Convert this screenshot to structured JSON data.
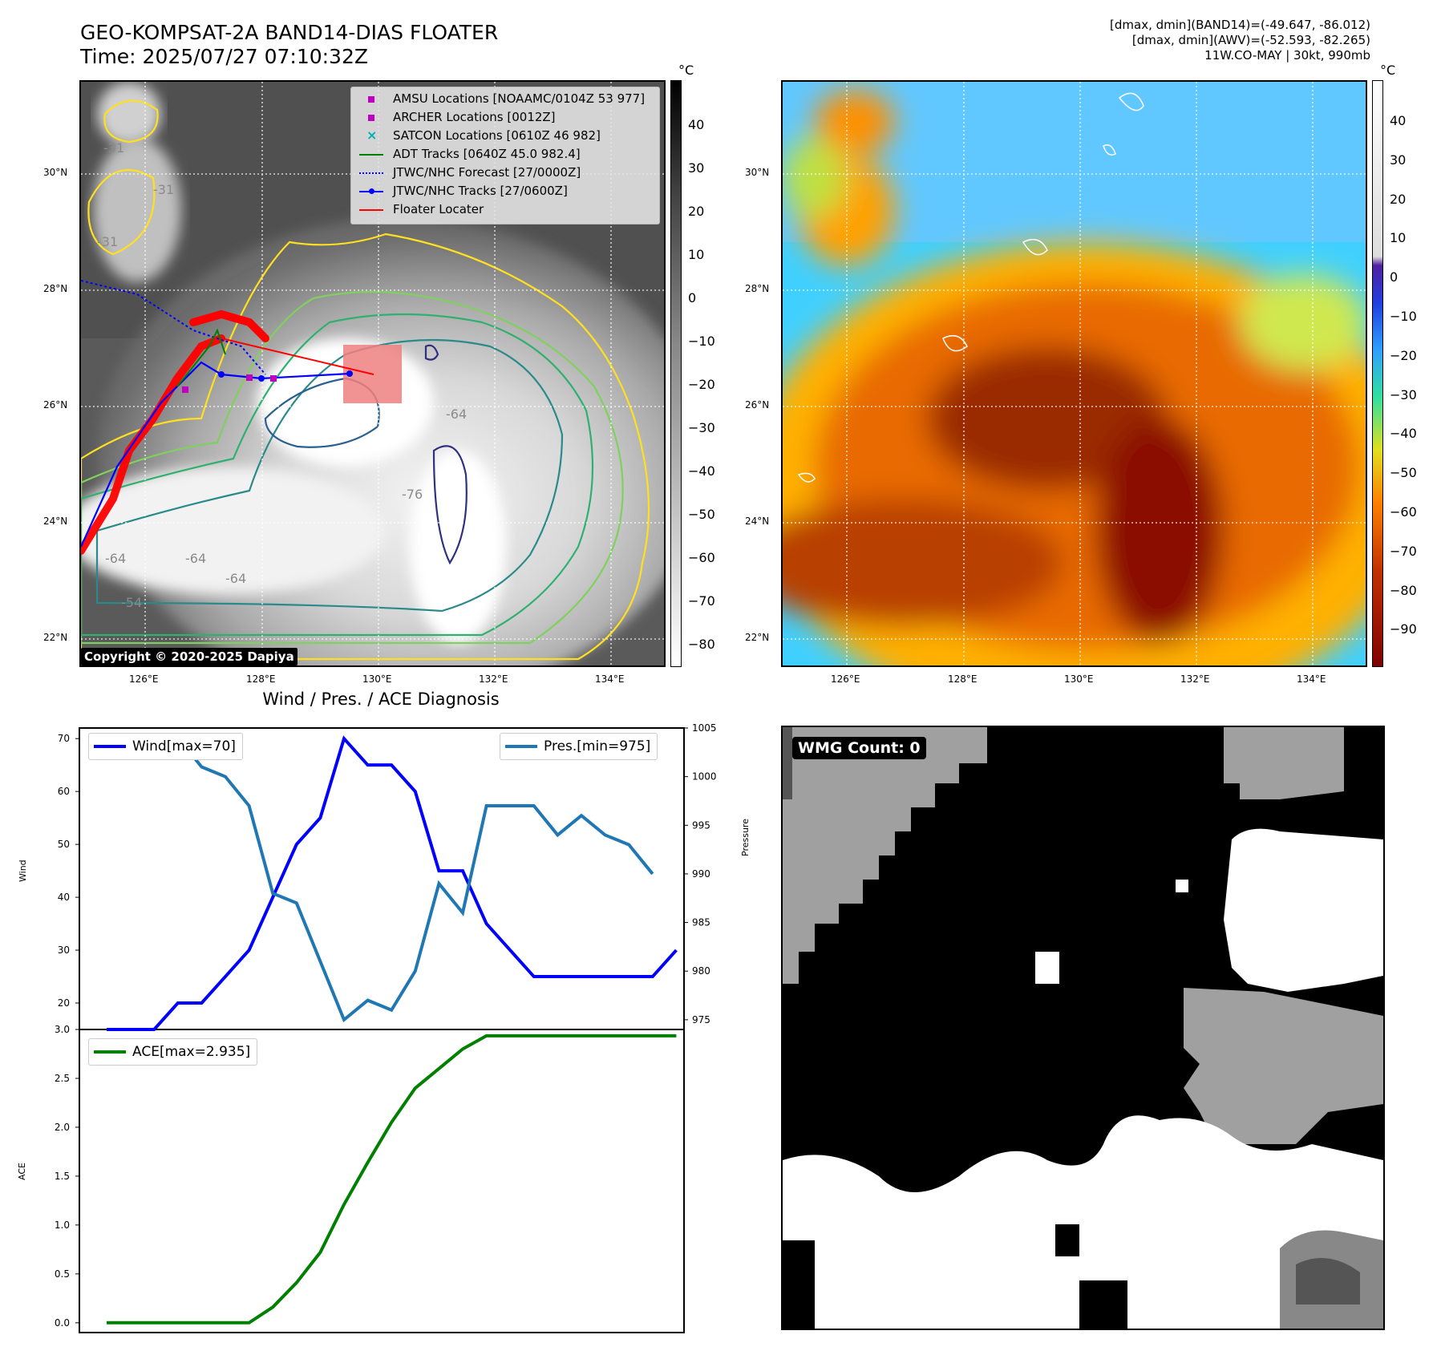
{
  "header": {
    "title_line1": "GEO-KOMPSAT-2A BAND14-DIAS FLOATER",
    "title_line2": "Time: 2025/07/27 07:10:32Z",
    "info_line1": "[dmax, dmin](BAND14)=(-49.647, -86.012)",
    "info_line2": "[dmax, dmin](AWV)=(-52.593, -82.265)",
    "info_line3": "11W.CO-MAY | 30kt, 990mb"
  },
  "map": {
    "lat_labels": [
      "30°N",
      "28°N",
      "26°N",
      "24°N",
      "22°N"
    ],
    "lon_labels": [
      "126°E",
      "128°E",
      "130°E",
      "132°E",
      "134°E"
    ],
    "contour_labels": [
      "-31",
      "-31",
      "-31",
      "-64",
      "-64",
      "-64",
      "-64",
      "-76",
      "-54"
    ],
    "copyright": "Copyright © 2020-2025 Dapiya",
    "legend": [
      {
        "label": "AMSU Locations [NOAAMC/0104Z 53 977]",
        "color": "#c000c0",
        "marker": "square"
      },
      {
        "label": "ARCHER Locations [0012Z]",
        "color": "#c000c0",
        "marker": "square"
      },
      {
        "label": "SATCON Locations [0610Z 46 982]",
        "color": "#00b0b0",
        "marker": "x"
      },
      {
        "label": "ADT Tracks [0640Z 45.0 982.4]",
        "color": "#008000",
        "marker": "line"
      },
      {
        "label": "JTWC/NHC Forecast [27/0000Z]",
        "color": "#0000ff",
        "marker": "dotted"
      },
      {
        "label": "JTWC/NHC Tracks [27/0600Z]",
        "color": "#0000ff",
        "marker": "line-dot"
      },
      {
        "label": "Floater Locater",
        "color": "#ff0000",
        "marker": "line"
      }
    ]
  },
  "colorbar_gray": {
    "unit": "°C",
    "ticks": [
      "40",
      "30",
      "20",
      "10",
      "0",
      "−10",
      "−20",
      "−30",
      "−40",
      "−50",
      "−60",
      "−70",
      "−80"
    ]
  },
  "colorbar_color": {
    "unit": "°C",
    "ticks": [
      "40",
      "30",
      "20",
      "10",
      "0",
      "−10",
      "−20",
      "−30",
      "−40",
      "−50",
      "−60",
      "−70",
      "−80",
      "−90"
    ]
  },
  "wmg": {
    "label": "WMG Count: 0"
  },
  "chart_data": [
    {
      "type": "line",
      "title": "Wind / Pres. / ACE Diagnosis",
      "ylabel": "Wind",
      "ylabel_right": "Pressure",
      "ylim": [
        15,
        72
      ],
      "ylim_right": [
        974,
        1005
      ],
      "yticks": [
        20,
        30,
        40,
        50,
        60,
        70
      ],
      "yticks_right": [
        975,
        980,
        985,
        990,
        995,
        1000,
        1005
      ],
      "series": [
        {
          "name": "Wind[max=70]",
          "color": "#0000ff",
          "axis": "left",
          "values": [
            15,
            15,
            15,
            20,
            20,
            25,
            30,
            40,
            50,
            55,
            70,
            65,
            65,
            60,
            45,
            45,
            35,
            30,
            25,
            25,
            25,
            25,
            25,
            25,
            30
          ]
        },
        {
          "name": "Pres.[min=975]",
          "color": "#1f77b4",
          "axis": "right",
          "values": [
            1004,
            1004,
            1004,
            1004,
            1001,
            1000,
            997,
            988,
            987,
            981,
            975,
            977,
            976,
            980,
            989,
            986,
            997,
            997,
            997,
            994,
            996,
            994,
            993,
            990,
            null
          ]
        }
      ]
    },
    {
      "type": "line",
      "ylabel": "ACE",
      "ylim": [
        -0.1,
        3.0
      ],
      "yticks": [
        0.0,
        0.5,
        1.0,
        1.5,
        2.0,
        2.5,
        3.0
      ],
      "series": [
        {
          "name": "ACE[max=2.935]",
          "color": "#008000",
          "values": [
            0,
            0,
            0,
            0,
            0,
            0,
            0,
            0.16,
            0.41,
            0.72,
            1.21,
            1.64,
            2.05,
            2.4,
            2.6,
            2.8,
            2.935,
            2.935,
            2.935,
            2.935,
            2.935,
            2.935,
            2.935,
            2.935,
            2.935
          ]
        }
      ]
    }
  ]
}
